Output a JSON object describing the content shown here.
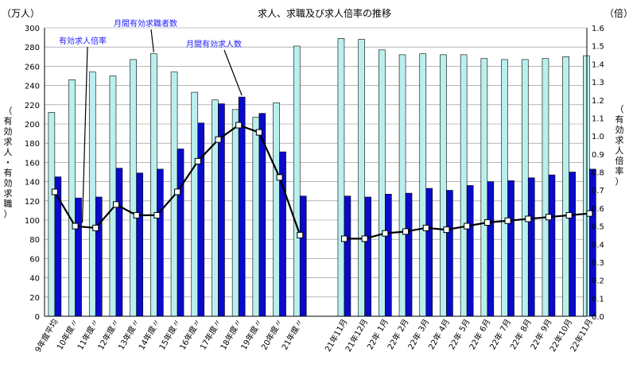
{
  "chart_data": {
    "type": "bar",
    "title": "求人、求職及び求人倍率の推移",
    "y_left_unit": "（万人）",
    "y_right_unit": "（倍）",
    "y_left_label": "（有効求人・有効求職）",
    "y_right_label": "（有効求人倍率）",
    "y_left_range": [
      0,
      300
    ],
    "y_left_ticks": [
      0,
      20,
      40,
      60,
      80,
      100,
      120,
      140,
      160,
      180,
      200,
      220,
      240,
      260,
      280,
      300
    ],
    "y_right_range": [
      0,
      1.6
    ],
    "y_right_ticks": [
      "0.0",
      "0.1",
      "0.2",
      "0.3",
      "0.4",
      "0.5",
      "0.6",
      "0.7",
      "0.8",
      "0.9",
      "1.0",
      "1.1",
      "1.2",
      "1.3",
      "1.4",
      "1.5",
      "1.6"
    ],
    "groups": [
      {
        "categories": [
          "9年度平均",
          "10年度〃",
          "11年度〃",
          "12年度〃",
          "13年度〃",
          "14年度〃",
          "15年度〃",
          "16年度〃",
          "17年度〃",
          "18年度〃",
          "19年度〃",
          "20年度〃",
          "21年度〃"
        ]
      },
      {
        "categories": [
          "21年11月",
          "21年12月",
          "22年 1月",
          "22年 2月",
          "22年 3月",
          "22年 4月",
          "22年 5月",
          "22年 6月",
          "22年 7月",
          "22年 8月",
          "22年 9月",
          "22年10月",
          "22年11月"
        ]
      }
    ],
    "series": [
      {
        "name": "月間有効求職者数",
        "kind": "bar",
        "axis": "left",
        "color": "#b9f0ee",
        "values": [
          [
            212,
            246,
            254,
            250,
            267,
            273,
            254,
            233,
            225,
            215,
            207,
            222,
            281
          ],
          [
            289,
            288,
            277,
            272,
            273,
            272,
            272,
            268,
            267,
            267,
            268,
            270,
            271
          ]
        ]
      },
      {
        "name": "月間有効求人数",
        "kind": "bar",
        "axis": "left",
        "color": "#0a0acc",
        "values": [
          [
            145,
            123,
            124,
            154,
            149,
            153,
            174,
            201,
            221,
            228,
            211,
            171,
            125
          ],
          [
            125,
            124,
            127,
            128,
            133,
            131,
            136,
            140,
            141,
            144,
            147,
            150,
            153
          ]
        ]
      },
      {
        "name": "有効求人倍率",
        "kind": "line",
        "axis": "right",
        "color": "#000000",
        "values": [
          [
            0.69,
            0.5,
            0.49,
            0.62,
            0.56,
            0.56,
            0.69,
            0.86,
            0.98,
            1.06,
            1.02,
            0.77,
            0.45
          ],
          [
            0.43,
            0.43,
            0.46,
            0.47,
            0.49,
            0.48,
            0.5,
            0.52,
            0.53,
            0.54,
            0.55,
            0.56,
            0.57
          ]
        ]
      }
    ],
    "annotations": [
      {
        "text": "有効求人倍率",
        "series": "有効求人倍率"
      },
      {
        "text": "月間有効求職者数",
        "series": "月間有効求職者数"
      },
      {
        "text": "月間有効求人数",
        "series": "月間有効求人数"
      }
    ]
  }
}
